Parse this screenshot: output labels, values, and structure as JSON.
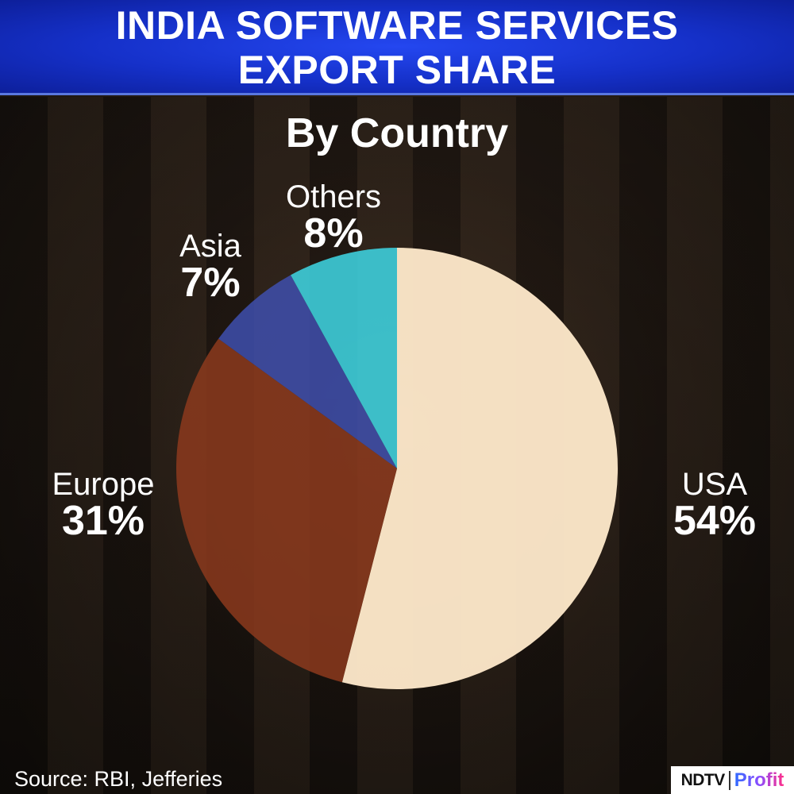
{
  "header": {
    "title_line1": "INDIA SOFTWARE SERVICES",
    "title_line2": "EXPORT SHARE"
  },
  "chart_data": {
    "type": "pie",
    "title": "INDIA SOFTWARE SERVICES EXPORT SHARE",
    "subtitle": "By Country",
    "slices": [
      {
        "label": "USA",
        "value": 54,
        "display": "54%",
        "color": "#fbe6c8"
      },
      {
        "label": "Europe",
        "value": 31,
        "display": "31%",
        "color": "#8c3a1d"
      },
      {
        "label": "Asia",
        "value": 7,
        "display": "7%",
        "color": "#3e4fae"
      },
      {
        "label": "Others",
        "value": 8,
        "display": "8%",
        "color": "#3ed8e6"
      }
    ],
    "start": "top",
    "direction": "clockwise"
  },
  "footer": {
    "source": "Source: RBI, Jefferies",
    "logo_ndtv": "NDTV",
    "logo_profit": "Profit"
  }
}
